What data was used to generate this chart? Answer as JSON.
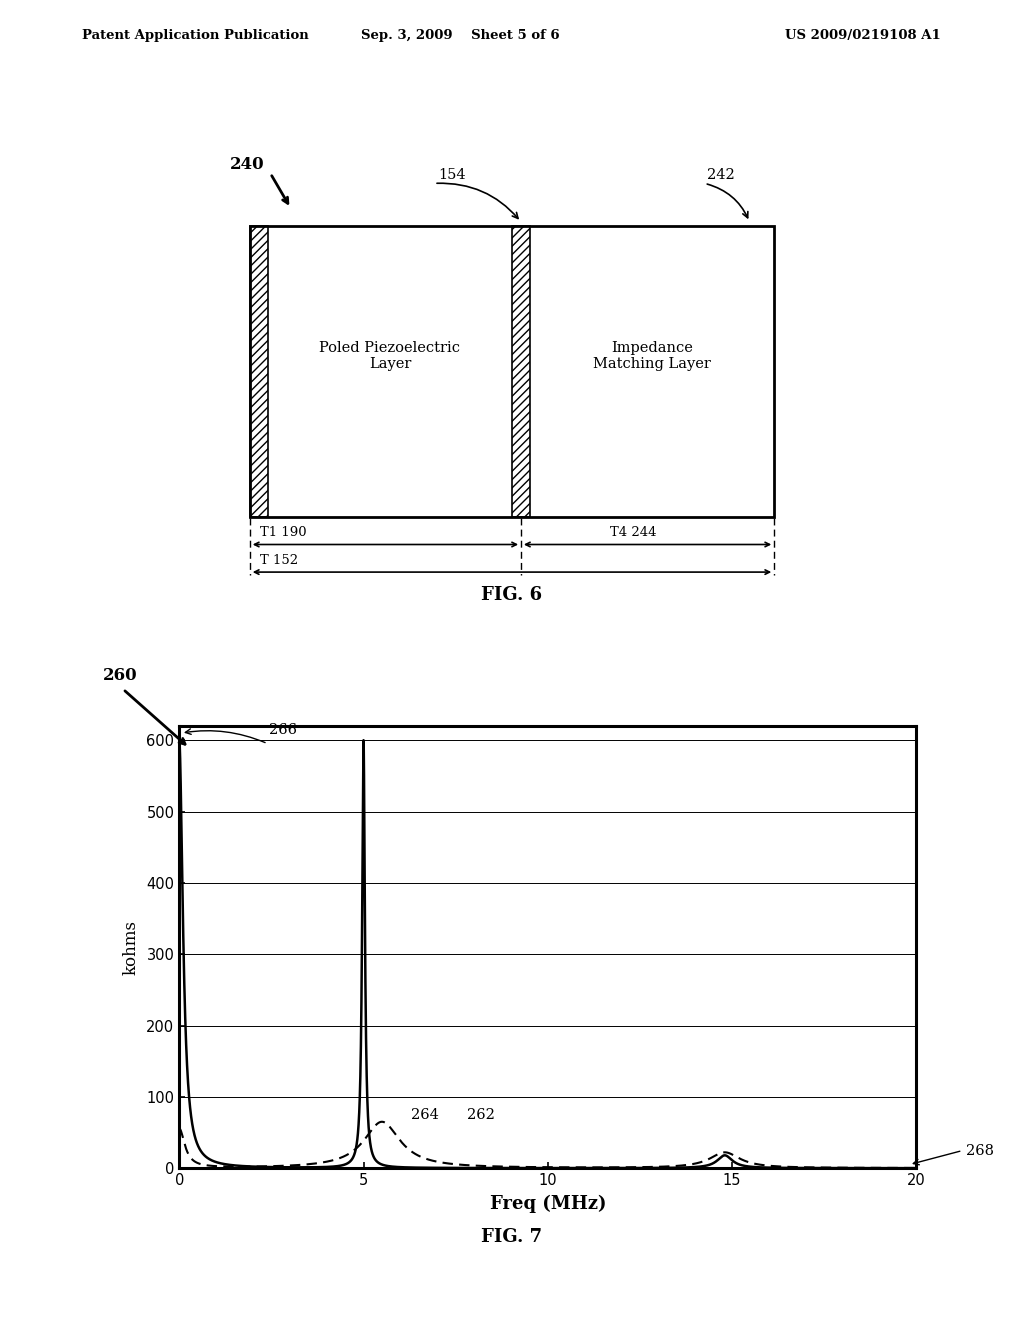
{
  "header_left": "Patent Application Publication",
  "header_mid": "Sep. 3, 2009    Sheet 5 of 6",
  "header_right": "US 2009/0219108 A1",
  "fig6_label": "FIG. 6",
  "fig7_label": "FIG. 7",
  "fig6": {
    "ref_240": "240",
    "ref_154": "154",
    "ref_242": "242",
    "ref_190": "T1 190",
    "ref_244": "T4 244",
    "ref_152": "T 152",
    "label_left": "Poled Piezoelectric\nLayer",
    "label_right": "Impedance\nMatching Layer"
  },
  "fig7": {
    "ref_260": "260",
    "ref_266": "266",
    "ref_264": "264",
    "ref_262": "262",
    "ref_268": "268",
    "ylabel": "kohms",
    "xlabel": "Freq (MHz)",
    "yticks": [
      0,
      100,
      200,
      300,
      400,
      500,
      600
    ],
    "xticks": [
      0,
      5,
      10,
      15,
      20
    ],
    "ylim": [
      0,
      620
    ],
    "xlim": [
      0,
      20
    ]
  },
  "bg_color": "#ffffff",
  "line_color": "#000000"
}
